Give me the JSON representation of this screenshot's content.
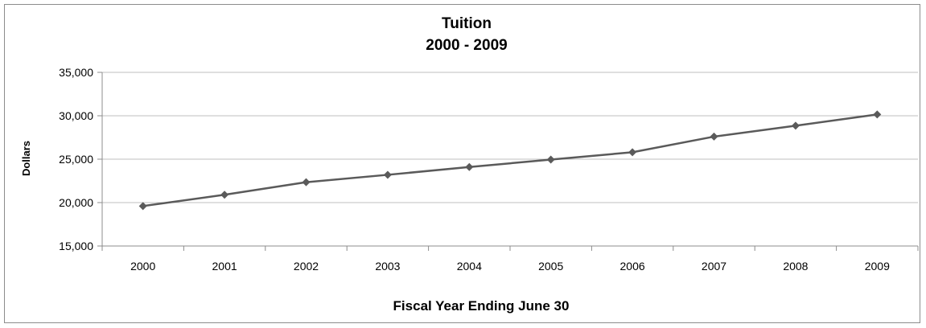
{
  "chart_data": {
    "type": "line",
    "title": "Tuition",
    "subtitle": "2000 - 2009",
    "xlabel": "Fiscal Year Ending June 30",
    "ylabel": "Dollars",
    "categories": [
      "2000",
      "2001",
      "2002",
      "2003",
      "2004",
      "2005",
      "2006",
      "2007",
      "2008",
      "2009"
    ],
    "series": [
      {
        "values": [
          19600,
          20900,
          22350,
          23200,
          24100,
          24950,
          25800,
          27600,
          28850,
          30150
        ]
      }
    ],
    "ylim": [
      15000,
      35000
    ],
    "yticks": [
      15000,
      20000,
      25000,
      30000,
      35000
    ],
    "ytick_labels": [
      "15,000",
      "20,000",
      "25,000",
      "30,000",
      "35,000"
    ],
    "grid": "horizontal",
    "legend": "none",
    "colors": {
      "line": "#5a5a5a",
      "marker": "#5a5a5a",
      "grid": "#bfbfbf",
      "axis": "#8c8c8c"
    }
  }
}
